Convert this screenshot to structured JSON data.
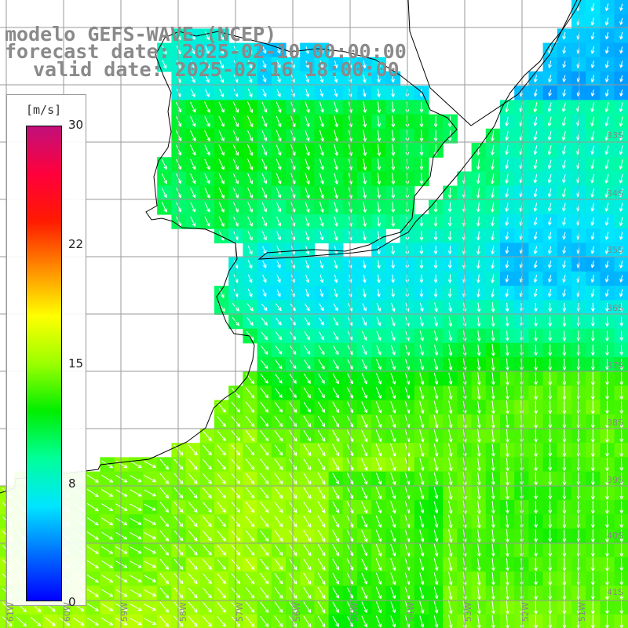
{
  "title": {
    "line1": "modelo GEFS-WAVE (NCEP)",
    "line2": "forecast date: 2025-02-10 00:00:00",
    "line3": "valid date: 2025-02-16 18:00:00"
  },
  "colorbar": {
    "unit": "[m/s]",
    "ticks": [
      "30",
      "22",
      "15",
      "8",
      "0"
    ],
    "tick_values": [
      30,
      22,
      15,
      8,
      0
    ],
    "range": [
      0,
      30
    ],
    "colors": [
      "#0000ff",
      "#0070ff",
      "#00e6ff",
      "#00ff9a",
      "#00ee00",
      "#9cff00",
      "#ffff00",
      "#ff8c00",
      "#ff1a00",
      "#ff003c",
      "#c0107a"
    ]
  },
  "axes": {
    "lat_labels": [
      "33S",
      "34S",
      "35S",
      "36S",
      "37S",
      "38S",
      "39S",
      "40S",
      "41S"
    ],
    "lon_labels": [
      "61W",
      "60W",
      "59W",
      "58W",
      "57W",
      "56W",
      "55W",
      "54W",
      "53W",
      "52W",
      "51W"
    ]
  },
  "wind_field": {
    "variable": "wind speed",
    "arrow_color": "#ffffff",
    "land_color": "#ffffff",
    "coast_color": "#000000",
    "grid_color": "#9a9a9a"
  }
}
